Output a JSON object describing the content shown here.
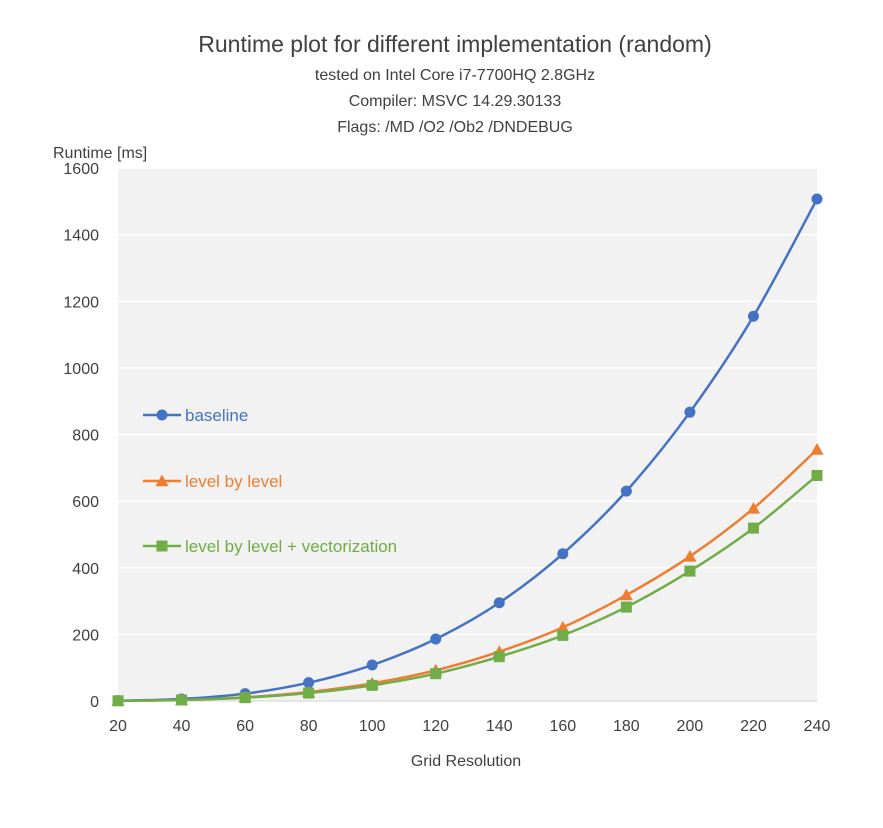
{
  "chart_data": {
    "type": "line",
    "title": "Runtime plot for different implementation (random)",
    "subtitle_lines": [
      "tested on Intel Core i7-7700HQ 2.8GHz",
      "Compiler: MSVC 14.29.30133",
      "Flags: /MD /O2 /Ob2 /DNDEBUG"
    ],
    "xlabel": "Grid Resolution",
    "ylabel": "Runtime [ms]",
    "x": [
      20,
      40,
      60,
      80,
      100,
      120,
      140,
      160,
      180,
      200,
      220,
      240
    ],
    "xlim": [
      20,
      240
    ],
    "ylim": [
      0,
      1600
    ],
    "yticks": [
      0,
      200,
      400,
      600,
      800,
      1000,
      1200,
      1400,
      1600
    ],
    "grid": "horizontal",
    "legend_position": "left, inside plot area",
    "plot_background": "#f2f2f2",
    "series": [
      {
        "name": "baseline",
        "color": "#4472c4",
        "marker": "circle",
        "values": [
          1,
          6,
          22,
          55,
          108,
          186,
          295,
          442,
          630,
          867,
          1155,
          1507
        ]
      },
      {
        "name": "level by level",
        "color": "#ed7d31",
        "marker": "triangle",
        "values": [
          0.5,
          3,
          11,
          27,
          53,
          92,
          148,
          221,
          318,
          434,
          578,
          755
        ]
      },
      {
        "name": "level by level + vectorization",
        "color": "#70ad47",
        "marker": "square",
        "values": [
          0.5,
          3,
          10,
          24,
          47,
          82,
          133,
          197,
          282,
          390,
          519,
          677
        ]
      }
    ]
  }
}
